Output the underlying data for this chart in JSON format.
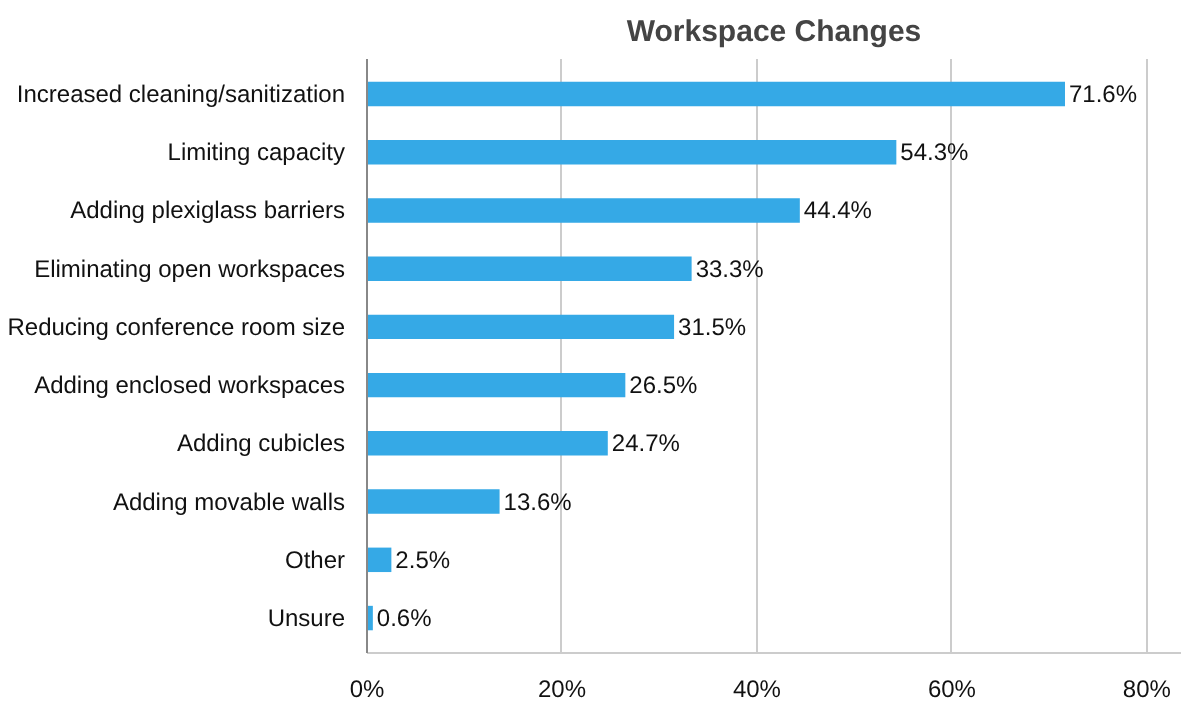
{
  "chart_data": {
    "type": "bar",
    "orientation": "horizontal",
    "title": "Workspace Changes",
    "categories": [
      "Increased cleaning/sanitization",
      "Limiting capacity",
      "Adding plexiglass barriers",
      "Eliminating open workspaces",
      "Reducing conference room size",
      "Adding enclosed workspaces",
      "Adding cubicles",
      "Adding movable walls",
      "Other",
      "Unsure"
    ],
    "values": [
      71.6,
      54.3,
      44.4,
      33.3,
      31.5,
      26.5,
      24.7,
      13.6,
      2.5,
      0.6
    ],
    "value_labels": [
      "71.6%",
      "54.3%",
      "44.4%",
      "33.3%",
      "31.5%",
      "26.5%",
      "24.7%",
      "13.6%",
      "2.5%",
      "0.6%"
    ],
    "color": "#35a9e6",
    "xlim": [
      0,
      83.5
    ],
    "xticks": [
      {
        "value": 0,
        "label": "0%"
      },
      {
        "value": 20,
        "label": "20%"
      },
      {
        "value": 40,
        "label": "40%"
      },
      {
        "value": 60,
        "label": "60%"
      },
      {
        "value": 80,
        "label": "80%"
      }
    ],
    "grid": "x"
  }
}
